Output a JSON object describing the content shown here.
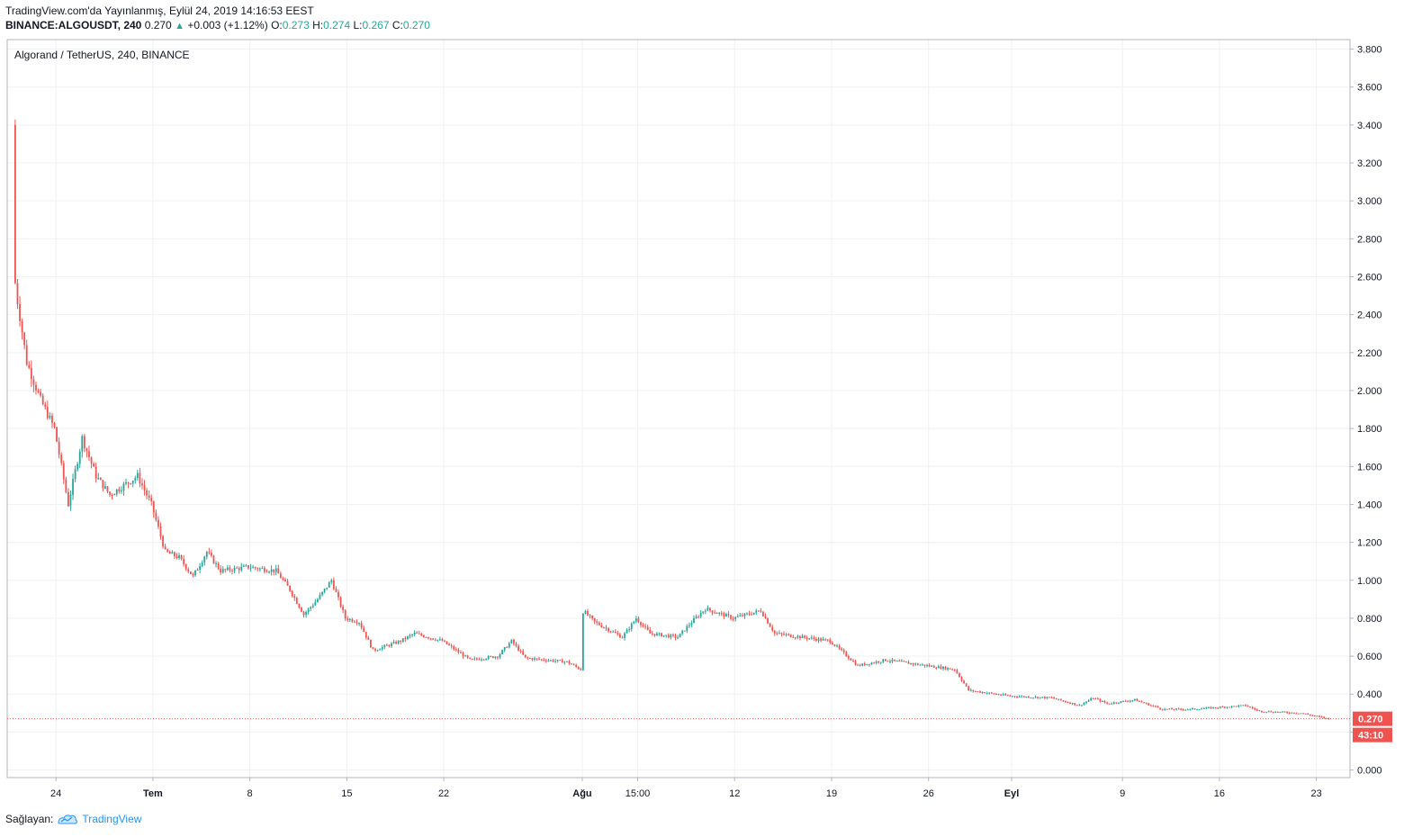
{
  "header": {
    "published": "TradingView.com'da Yayınlanmış, Eylül 24, 2019 14:16:53 EEST",
    "symbol": "BINANCE:ALGOUSDT, 240",
    "last": "0.270",
    "change": "+0.003 (+1.12%)",
    "o_label": "O:",
    "o_value": "0.273",
    "h_label": "H:",
    "h_value": "0.274",
    "l_label": "L:",
    "l_value": "0.267",
    "c_label": "C:",
    "c_value": "0.270"
  },
  "footer": {
    "provided_by": "Sağlayan:",
    "brand": "TradingView"
  },
  "colors": {
    "up": "#26a69a",
    "down": "#ef5350",
    "grid": "#eef0f3",
    "badge": "#ef5350"
  },
  "chart_data": {
    "type": "candlestick",
    "title": "Algorand / TetherUS, 240, BINANCE",
    "interval": "240",
    "ylim": [
      -0.04,
      3.85
    ],
    "y_ticks": [
      "3.800",
      "3.600",
      "3.400",
      "3.200",
      "3.000",
      "2.800",
      "2.600",
      "2.400",
      "2.200",
      "2.000",
      "1.800",
      "1.600",
      "1.400",
      "1.200",
      "1.000",
      "0.800",
      "0.600",
      "0.400",
      "0.200",
      "0.000"
    ],
    "y_tick_values": [
      3.8,
      3.6,
      3.4,
      3.2,
      3.0,
      2.8,
      2.6,
      2.4,
      2.2,
      2.0,
      1.8,
      1.6,
      1.4,
      1.2,
      1.0,
      0.8,
      0.6,
      0.4,
      0.2,
      0.0
    ],
    "x_start": "2019-06-21",
    "x_end": "2019-09-24",
    "x_ticks": [
      {
        "label": "24",
        "date": "2019-06-24",
        "bold": false
      },
      {
        "label": "Tem",
        "date": "2019-07-01",
        "bold": true
      },
      {
        "label": "8",
        "date": "2019-07-08",
        "bold": false
      },
      {
        "label": "15",
        "date": "2019-07-15",
        "bold": false
      },
      {
        "label": "22",
        "date": "2019-07-22",
        "bold": false
      },
      {
        "label": "Ağu",
        "date": "2019-08-01",
        "bold": true
      },
      {
        "label": "15:00",
        "date": "2019-08-05",
        "bold": false
      },
      {
        "label": "12",
        "date": "2019-08-12",
        "bold": false
      },
      {
        "label": "19",
        "date": "2019-08-19",
        "bold": false
      },
      {
        "label": "26",
        "date": "2019-08-26",
        "bold": false
      },
      {
        "label": "Eyl",
        "date": "2019-09-01",
        "bold": true
      },
      {
        "label": "9",
        "date": "2019-09-09",
        "bold": false
      },
      {
        "label": "16",
        "date": "2019-09-16",
        "bold": false
      },
      {
        "label": "23",
        "date": "2019-09-23",
        "bold": false
      }
    ],
    "price_path": [
      {
        "date": "2019-06-21",
        "price": 3.4
      },
      {
        "date": "2019-06-21",
        "price": 2.55
      },
      {
        "date": "2019-06-22",
        "price": 2.15
      },
      {
        "date": "2019-06-23",
        "price": 1.95
      },
      {
        "date": "2019-06-24",
        "price": 1.8
      },
      {
        "date": "2019-06-25",
        "price": 1.4
      },
      {
        "date": "2019-06-26",
        "price": 1.75
      },
      {
        "date": "2019-06-27",
        "price": 1.55
      },
      {
        "date": "2019-06-28",
        "price": 1.45
      },
      {
        "date": "2019-06-30",
        "price": 1.55
      },
      {
        "date": "2019-07-01",
        "price": 1.4
      },
      {
        "date": "2019-07-02",
        "price": 1.15
      },
      {
        "date": "2019-07-03",
        "price": 1.12
      },
      {
        "date": "2019-07-04",
        "price": 1.02
      },
      {
        "date": "2019-07-05",
        "price": 1.15
      },
      {
        "date": "2019-07-06",
        "price": 1.05
      },
      {
        "date": "2019-07-08",
        "price": 1.07
      },
      {
        "date": "2019-07-10",
        "price": 1.05
      },
      {
        "date": "2019-07-11",
        "price": 0.95
      },
      {
        "date": "2019-07-12",
        "price": 0.82
      },
      {
        "date": "2019-07-13",
        "price": 0.9
      },
      {
        "date": "2019-07-14",
        "price": 1.0
      },
      {
        "date": "2019-07-15",
        "price": 0.8
      },
      {
        "date": "2019-07-16",
        "price": 0.78
      },
      {
        "date": "2019-07-17",
        "price": 0.63
      },
      {
        "date": "2019-07-19",
        "price": 0.68
      },
      {
        "date": "2019-07-20",
        "price": 0.72
      },
      {
        "date": "2019-07-22",
        "price": 0.68
      },
      {
        "date": "2019-07-24",
        "price": 0.58
      },
      {
        "date": "2019-07-26",
        "price": 0.6
      },
      {
        "date": "2019-07-27",
        "price": 0.68
      },
      {
        "date": "2019-07-28",
        "price": 0.59
      },
      {
        "date": "2019-07-31",
        "price": 0.57
      },
      {
        "date": "2019-08-01",
        "price": 0.53
      },
      {
        "date": "2019-08-01",
        "price": 0.84
      },
      {
        "date": "2019-08-02",
        "price": 0.78
      },
      {
        "date": "2019-08-04",
        "price": 0.7
      },
      {
        "date": "2019-08-05",
        "price": 0.8
      },
      {
        "date": "2019-08-06",
        "price": 0.72
      },
      {
        "date": "2019-08-08",
        "price": 0.7
      },
      {
        "date": "2019-08-09",
        "price": 0.78
      },
      {
        "date": "2019-08-10",
        "price": 0.85
      },
      {
        "date": "2019-08-12",
        "price": 0.8
      },
      {
        "date": "2019-08-14",
        "price": 0.84
      },
      {
        "date": "2019-08-15",
        "price": 0.72
      },
      {
        "date": "2019-08-17",
        "price": 0.7
      },
      {
        "date": "2019-08-19",
        "price": 0.68
      },
      {
        "date": "2019-08-21",
        "price": 0.55
      },
      {
        "date": "2019-08-23",
        "price": 0.58
      },
      {
        "date": "2019-08-26",
        "price": 0.55
      },
      {
        "date": "2019-08-28",
        "price": 0.53
      },
      {
        "date": "2019-08-29",
        "price": 0.42
      },
      {
        "date": "2019-09-01",
        "price": 0.39
      },
      {
        "date": "2019-09-04",
        "price": 0.38
      },
      {
        "date": "2019-09-06",
        "price": 0.34
      },
      {
        "date": "2019-09-07",
        "price": 0.38
      },
      {
        "date": "2019-09-08",
        "price": 0.35
      },
      {
        "date": "2019-09-10",
        "price": 0.37
      },
      {
        "date": "2019-09-12",
        "price": 0.32
      },
      {
        "date": "2019-09-14",
        "price": 0.32
      },
      {
        "date": "2019-09-16",
        "price": 0.33
      },
      {
        "date": "2019-09-18",
        "price": 0.34
      },
      {
        "date": "2019-09-19",
        "price": 0.31
      },
      {
        "date": "2019-09-22",
        "price": 0.3
      },
      {
        "date": "2019-09-24",
        "price": 0.27
      }
    ],
    "last_price_label": "0.270",
    "countdown_label": "43:10"
  }
}
